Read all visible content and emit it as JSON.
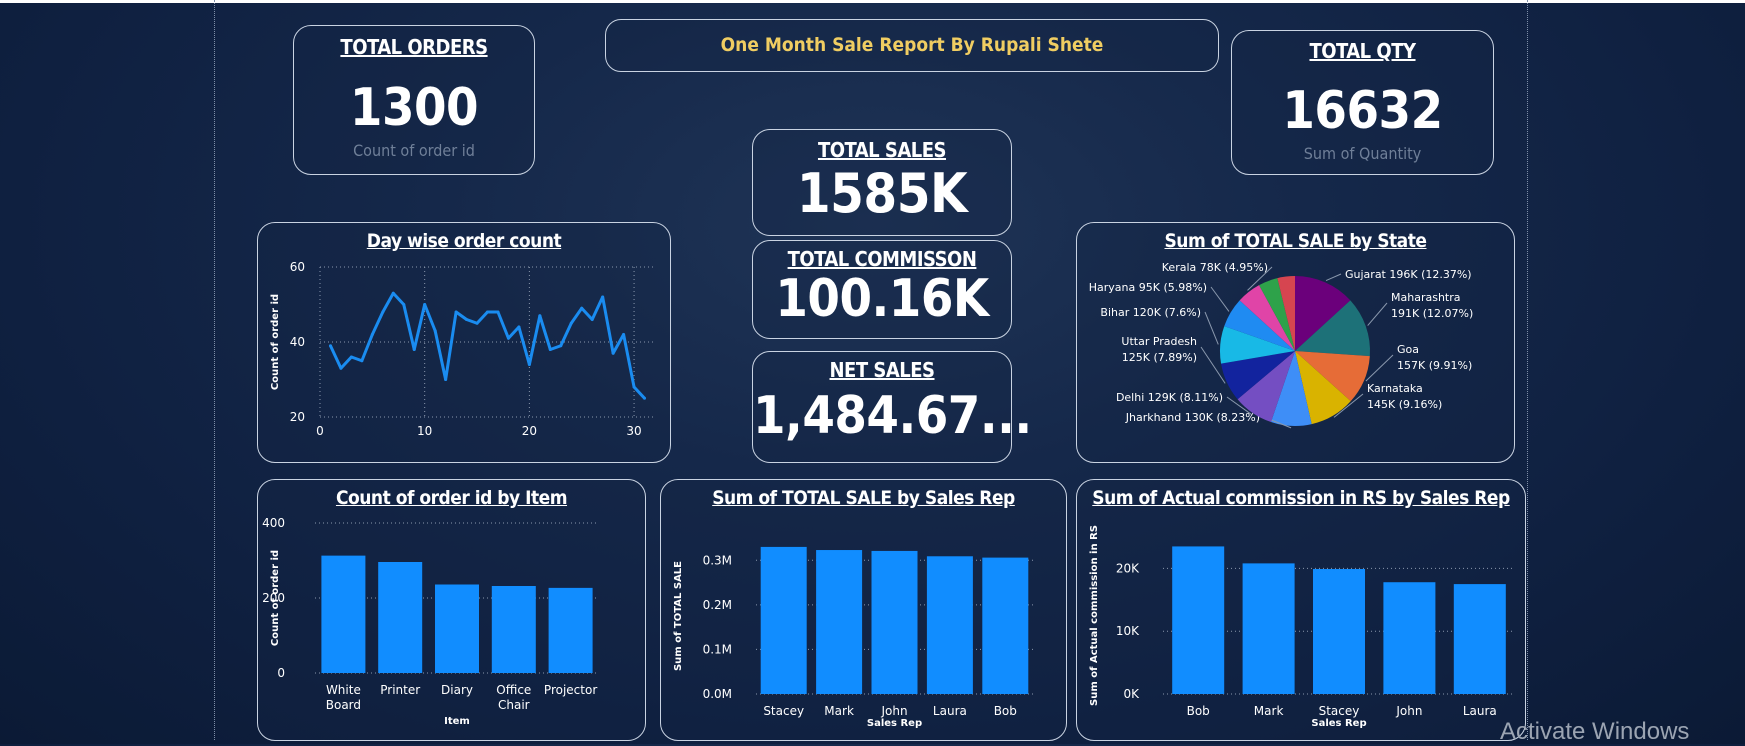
{
  "report_title": "One Month Sale Report By Rupali Shete",
  "kpis": {
    "total_orders": {
      "title": "TOTAL ORDERS",
      "value": "1300",
      "sub": "Count of order id"
    },
    "total_qty": {
      "title": "TOTAL QTY",
      "value": "16632",
      "sub": "Sum of Quantity"
    },
    "total_sales": {
      "title": "TOTAL SALES",
      "value": "1585K"
    },
    "total_commission": {
      "title": "TOTAL COMMISSON",
      "value": "100.16K"
    },
    "net_sales": {
      "title": "NET SALES",
      "value": "1,484.67..."
    }
  },
  "watermark": "Activate Windows",
  "colors": {
    "accent": "#f0cd62",
    "bar": "#118dff",
    "line": "#1a8cf0",
    "card_border": "#c9d3e2"
  },
  "chart_data": [
    {
      "id": "day_wise",
      "type": "line",
      "title": "Day wise order count",
      "xlabel": "",
      "ylabel": "Count of order id",
      "x": [
        1,
        2,
        3,
        4,
        5,
        6,
        7,
        8,
        9,
        10,
        11,
        12,
        13,
        14,
        15,
        16,
        17,
        18,
        19,
        20,
        21,
        22,
        23,
        24,
        25,
        26,
        27,
        28,
        29,
        30,
        31
      ],
      "values": [
        39,
        33,
        36,
        35,
        42,
        48,
        53,
        50,
        38,
        50,
        43,
        30,
        48,
        46,
        45,
        48,
        48,
        41,
        44,
        34,
        47,
        38,
        39,
        45,
        49,
        46,
        52,
        37,
        42,
        28,
        25
      ],
      "xlim": [
        0,
        32
      ],
      "ylim": [
        20,
        60
      ],
      "xticks": [
        "0",
        "10",
        "20",
        "30"
      ],
      "xtick_values": [
        0,
        10,
        20,
        30
      ],
      "yticks": [
        "20",
        "40",
        "60"
      ],
      "ytick_values": [
        20,
        40,
        60
      ],
      "grid": true
    },
    {
      "id": "by_state",
      "type": "pie",
      "title": "Sum of TOTAL SALE by State",
      "slices": [
        {
          "label": "Gujarat",
          "value": 196,
          "display": "Gujarat 196K (12.37%)",
          "color": "#6b007b"
        },
        {
          "label": "Maharashtra",
          "value": 191,
          "display": "Maharashtra 191K (12.07%)",
          "color": "#1d7178"
        },
        {
          "label": "Goa",
          "value": 157,
          "display": "Goa 157K (9.91%)",
          "color": "#e66c37"
        },
        {
          "label": "Karnataka",
          "value": 145,
          "display": "Karnataka 145K (9.16%)",
          "color": "#d9b300"
        },
        {
          "label": "Jharkhand",
          "value": 130,
          "display": "Jharkhand 130K (8.23%)",
          "color": "#3e8ef7"
        },
        {
          "label": "Delhi",
          "value": 129,
          "display": "Delhi 129K (8.11%)",
          "color": "#744ec2"
        },
        {
          "label": "Uttar Pradesh",
          "value": 125,
          "display": "Uttar Pradesh 125K (7.89%)",
          "color": "#12239e"
        },
        {
          "label": "Bihar",
          "value": 120,
          "display": "Bihar 120K (7.6%)",
          "color": "#18b9e6"
        },
        {
          "label": "Haryana",
          "value": 95,
          "display": "Haryana 95K (5.98%)",
          "color": "#1f8bf2"
        },
        {
          "label": "Kerala",
          "value": 78,
          "display": "Kerala 78K (4.95%)",
          "color": "#e044a7"
        },
        {
          "label": "Other",
          "value": 62,
          "display": "",
          "color": "#2ea24a"
        },
        {
          "label": "Other",
          "value": 56,
          "display": "",
          "color": "#d64550"
        }
      ]
    },
    {
      "id": "by_item",
      "type": "bar",
      "title": "Count of order id by Item",
      "xlabel": "Item",
      "ylabel": "Count of order id",
      "categories": [
        "White Board",
        "Printer",
        "Diary",
        "Office Chair",
        "Projector"
      ],
      "category_lines": [
        [
          "White",
          "Board"
        ],
        [
          "Printer"
        ],
        [
          "Diary"
        ],
        [
          "Office",
          "Chair"
        ],
        [
          "Projector"
        ]
      ],
      "values": [
        313,
        296,
        236,
        232,
        227
      ],
      "ylim": [
        0,
        400
      ],
      "yticks": [
        "0",
        "200",
        "400"
      ],
      "ytick_values": [
        0,
        200,
        400
      ]
    },
    {
      "id": "sale_by_rep",
      "type": "bar",
      "title": "Sum of TOTAL SALE by Sales Rep",
      "xlabel": "Sales Rep",
      "ylabel": "Sum of TOTAL SALE",
      "categories": [
        "Stacey",
        "Mark",
        "John",
        "Laura",
        "Bob"
      ],
      "category_lines": [
        [
          "Stacey"
        ],
        [
          "Mark"
        ],
        [
          "John"
        ],
        [
          "Laura"
        ],
        [
          "Bob"
        ]
      ],
      "values": [
        0.33,
        0.323,
        0.321,
        0.309,
        0.306
      ],
      "ylim": [
        0,
        0.35
      ],
      "yticks": [
        "0.0M",
        "0.1M",
        "0.2M",
        "0.3M"
      ],
      "ytick_values": [
        0,
        0.1,
        0.2,
        0.3
      ]
    },
    {
      "id": "commission_by_rep",
      "type": "bar",
      "title": "Sum of Actual commission in RS by Sales Rep",
      "xlabel": "Sales Rep",
      "ylabel": "Sum of Actual commission in RS",
      "categories": [
        "Bob",
        "Mark",
        "Stacey",
        "John",
        "Laura"
      ],
      "category_lines": [
        [
          "Bob"
        ],
        [
          "Mark"
        ],
        [
          "Stacey"
        ],
        [
          "John"
        ],
        [
          "Laura"
        ]
      ],
      "values": [
        23500,
        20800,
        19900,
        17800,
        17500
      ],
      "ylim": [
        0,
        25000
      ],
      "yticks": [
        "0K",
        "10K",
        "20K"
      ],
      "ytick_values": [
        0,
        10000,
        20000
      ]
    }
  ]
}
